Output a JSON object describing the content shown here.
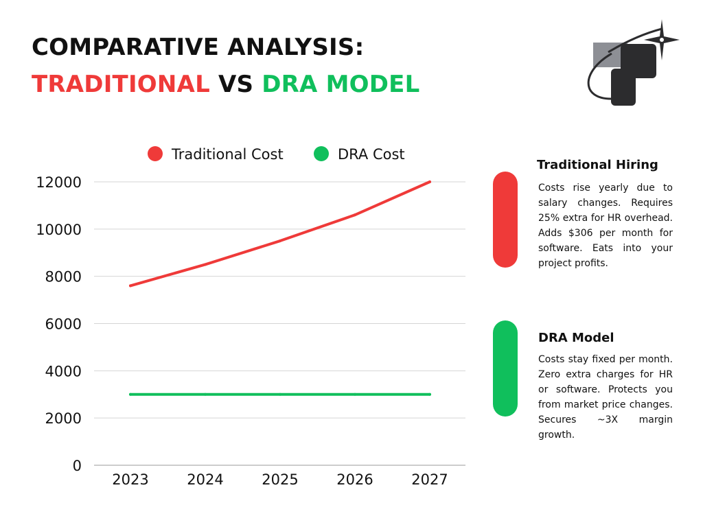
{
  "header": {
    "line1": "COMPARATIVE ANALYSIS:",
    "traditional": "TRADITIONAL",
    "vs": "VS",
    "dra": "DRA MODEL"
  },
  "colors": {
    "red": "#ef3a39",
    "green": "#10bf5c",
    "grid": "#d4d4d4",
    "logo_gray": "#8d8f95",
    "logo_dark": "#2c2c2e"
  },
  "chart_data": {
    "type": "line",
    "categories": [
      "2023",
      "2024",
      "2025",
      "2026",
      "2027"
    ],
    "series": [
      {
        "name": "Traditional Cost",
        "values": [
          7600,
          8500,
          9500,
          10600,
          12000
        ],
        "color": "#ef3a39"
      },
      {
        "name": "DRA Cost",
        "values": [
          3000,
          3000,
          3000,
          3000,
          3000
        ],
        "color": "#10bf5c"
      }
    ],
    "ylim": [
      0,
      12000
    ],
    "yticks": [
      "0",
      "2000",
      "4000",
      "6000",
      "8000",
      "10000",
      "12000"
    ],
    "grid": true,
    "legend_position": "top-center",
    "title": "",
    "xlabel": "",
    "ylabel": ""
  },
  "cards": {
    "traditional": {
      "heading": "Traditional Hiring",
      "body": "Costs rise yearly due to salary changes. Requires 25% extra for HR overhead. Adds $306 per month for software. Eats into your project profits."
    },
    "dra": {
      "heading": "DRA Model",
      "body": "Costs stay fixed per month. Zero extra charges for HR or software. Protects you from market price changes. Secures ~3X margin growth."
    }
  }
}
